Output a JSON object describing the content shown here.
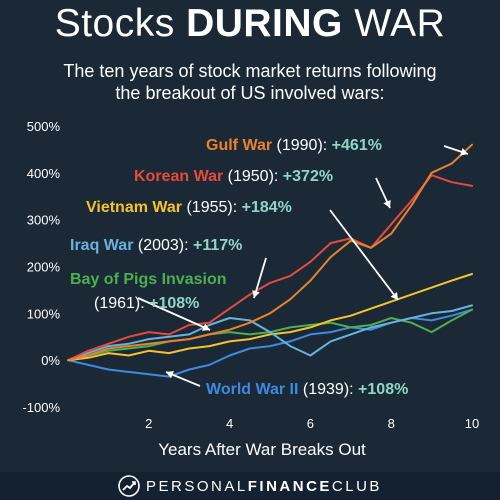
{
  "header": {
    "title_part1": "Stocks ",
    "title_part2": "DURING",
    "title_part3": " WAR",
    "subtitle_line1": "The ten years of stock market returns following",
    "subtitle_line2": "the breakout of US involved wars:"
  },
  "footer": {
    "brand_part1": "PERSONAL",
    "brand_part2": "FINANCE",
    "brand_part3": "CLUB"
  },
  "chart_data": {
    "type": "line",
    "title": "",
    "xlabel": "Years After War Breaks Out",
    "ylabel": "",
    "xlim": [
      0,
      10
    ],
    "ylim": [
      -100,
      500
    ],
    "x_ticks": [
      2,
      4,
      6,
      8,
      10
    ],
    "y_ticks": [
      -100,
      0,
      100,
      200,
      300,
      400,
      500
    ],
    "y_tick_labels": [
      "-100%",
      "0%",
      "100%",
      "200%",
      "300%",
      "400%",
      "500%"
    ],
    "grid": false,
    "series": [
      {
        "name": "Gulf War",
        "year": "(1990):",
        "return_label": "+461%",
        "color": "#e8832d",
        "x": [
          0,
          0.5,
          1,
          1.5,
          2,
          2.5,
          3,
          3.5,
          4,
          4.5,
          5,
          5.5,
          6,
          6.5,
          7,
          7.5,
          8,
          8.5,
          9,
          9.5,
          10
        ],
        "y": [
          0,
          10,
          25,
          30,
          35,
          40,
          45,
          55,
          65,
          80,
          100,
          130,
          170,
          220,
          255,
          240,
          270,
          330,
          400,
          420,
          460
        ]
      },
      {
        "name": "Korean War",
        "year": "(1950):",
        "return_label": "+372%",
        "color": "#e64a3c",
        "x": [
          0,
          0.5,
          1,
          1.5,
          2,
          2.5,
          3,
          3.5,
          4,
          4.5,
          5,
          5.5,
          6,
          6.5,
          7,
          7.5,
          8,
          8.5,
          9,
          9.5,
          10
        ],
        "y": [
          0,
          20,
          35,
          50,
          60,
          55,
          75,
          80,
          110,
          140,
          165,
          180,
          210,
          250,
          260,
          240,
          290,
          340,
          395,
          380,
          372
        ]
      },
      {
        "name": "Vietnam War",
        "year": "(1955):",
        "return_label": "+184%",
        "color": "#f5c330",
        "x": [
          0,
          0.5,
          1,
          1.5,
          2,
          2.5,
          3,
          3.5,
          4,
          4.5,
          5,
          5.5,
          6,
          6.5,
          7,
          7.5,
          8,
          8.5,
          9,
          9.5,
          10
        ],
        "y": [
          0,
          5,
          15,
          10,
          20,
          15,
          25,
          30,
          40,
          45,
          55,
          60,
          70,
          85,
          95,
          110,
          125,
          140,
          155,
          170,
          184
        ]
      },
      {
        "name": "Iraq War",
        "year": "(2003):",
        "return_label": "+117%",
        "color": "#69b2dc",
        "x": [
          0,
          0.5,
          1,
          1.5,
          2,
          2.5,
          3,
          3.5,
          4,
          4.5,
          5,
          5.5,
          6,
          6.5,
          7,
          7.5,
          8,
          8.5,
          9,
          9.5,
          10
        ],
        "y": [
          0,
          15,
          30,
          35,
          45,
          50,
          55,
          75,
          90,
          85,
          60,
          30,
          10,
          40,
          55,
          70,
          80,
          90,
          100,
          105,
          117
        ]
      },
      {
        "name": "Bay of Pigs Invasion",
        "year": "(1961):",
        "return_label": "+108%",
        "color": "#4caf50",
        "x": [
          0,
          0.5,
          1,
          1.5,
          2,
          2.5,
          3,
          3.5,
          4,
          4.5,
          5,
          5.5,
          6,
          6.5,
          7,
          7.5,
          8,
          8.5,
          9,
          9.5,
          10
        ],
        "y": [
          0,
          10,
          20,
          25,
          30,
          40,
          45,
          55,
          60,
          55,
          60,
          70,
          75,
          80,
          70,
          75,
          90,
          80,
          60,
          85,
          108
        ]
      },
      {
        "name": "World War II",
        "year": "(1939):",
        "return_label": "+108%",
        "color": "#3d8ae0",
        "x": [
          0,
          0.5,
          1,
          1.5,
          2,
          2.5,
          3,
          3.5,
          4,
          4.5,
          5,
          5.5,
          6,
          6.5,
          7,
          7.5,
          8,
          8.5,
          9,
          9.5,
          10
        ],
        "y": [
          0,
          -10,
          -20,
          -25,
          -30,
          -35,
          -20,
          -10,
          10,
          25,
          30,
          40,
          55,
          60,
          70,
          65,
          80,
          90,
          85,
          95,
          108
        ]
      }
    ]
  }
}
